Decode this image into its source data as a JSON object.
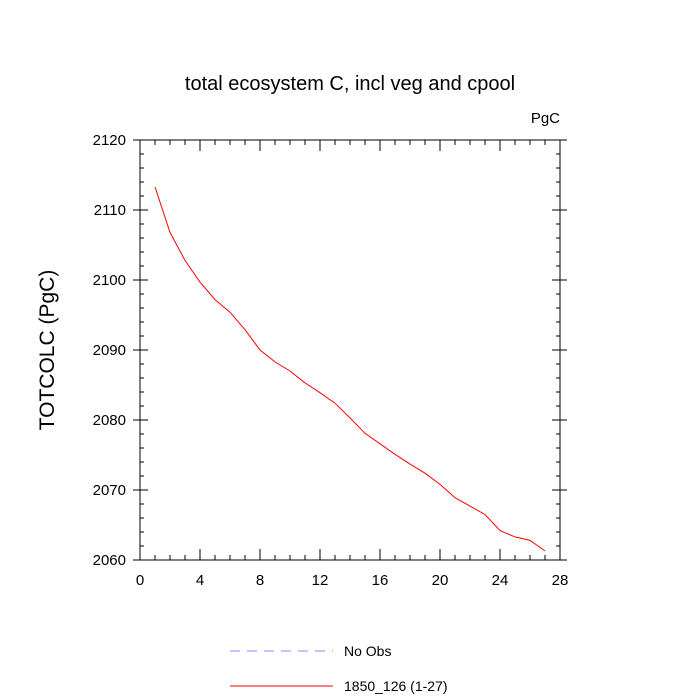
{
  "chart_data": {
    "type": "line",
    "title": "total ecosystem C, incl veg and cpool",
    "units_label": "PgC",
    "xlabel": "",
    "ylabel": "TOTCOLC  (PgC)",
    "xlim": [
      0,
      28
    ],
    "ylim": [
      2060,
      2120
    ],
    "x_ticks": [
      0,
      4,
      8,
      12,
      16,
      20,
      24,
      28
    ],
    "y_ticks": [
      2060,
      2070,
      2080,
      2090,
      2100,
      2110,
      2120
    ],
    "grid": false,
    "legend_position": "bottom-center",
    "series": [
      {
        "name": "1850_126 (1-27)",
        "color": "#ff0000",
        "style": "solid",
        "x": [
          1,
          2,
          3,
          4,
          5,
          6,
          7,
          8,
          9,
          10,
          11,
          12,
          13,
          14,
          15,
          16,
          17,
          18,
          19,
          20,
          21,
          22,
          23,
          24,
          25,
          26,
          27
        ],
        "y": [
          2113.3,
          2106.8,
          2102.8,
          2099.7,
          2097.2,
          2095.4,
          2092.9,
          2090.0,
          2088.3,
          2087.0,
          2085.3,
          2083.9,
          2082.4,
          2080.3,
          2078.1,
          2076.6,
          2075.1,
          2073.7,
          2072.4,
          2070.8,
          2068.9,
          2067.7,
          2066.5,
          2064.2,
          2063.3,
          2062.8,
          2061.3
        ]
      },
      {
        "name": "No Obs",
        "color": "#8888ff",
        "style": "dashed",
        "x": [],
        "y": []
      }
    ]
  }
}
